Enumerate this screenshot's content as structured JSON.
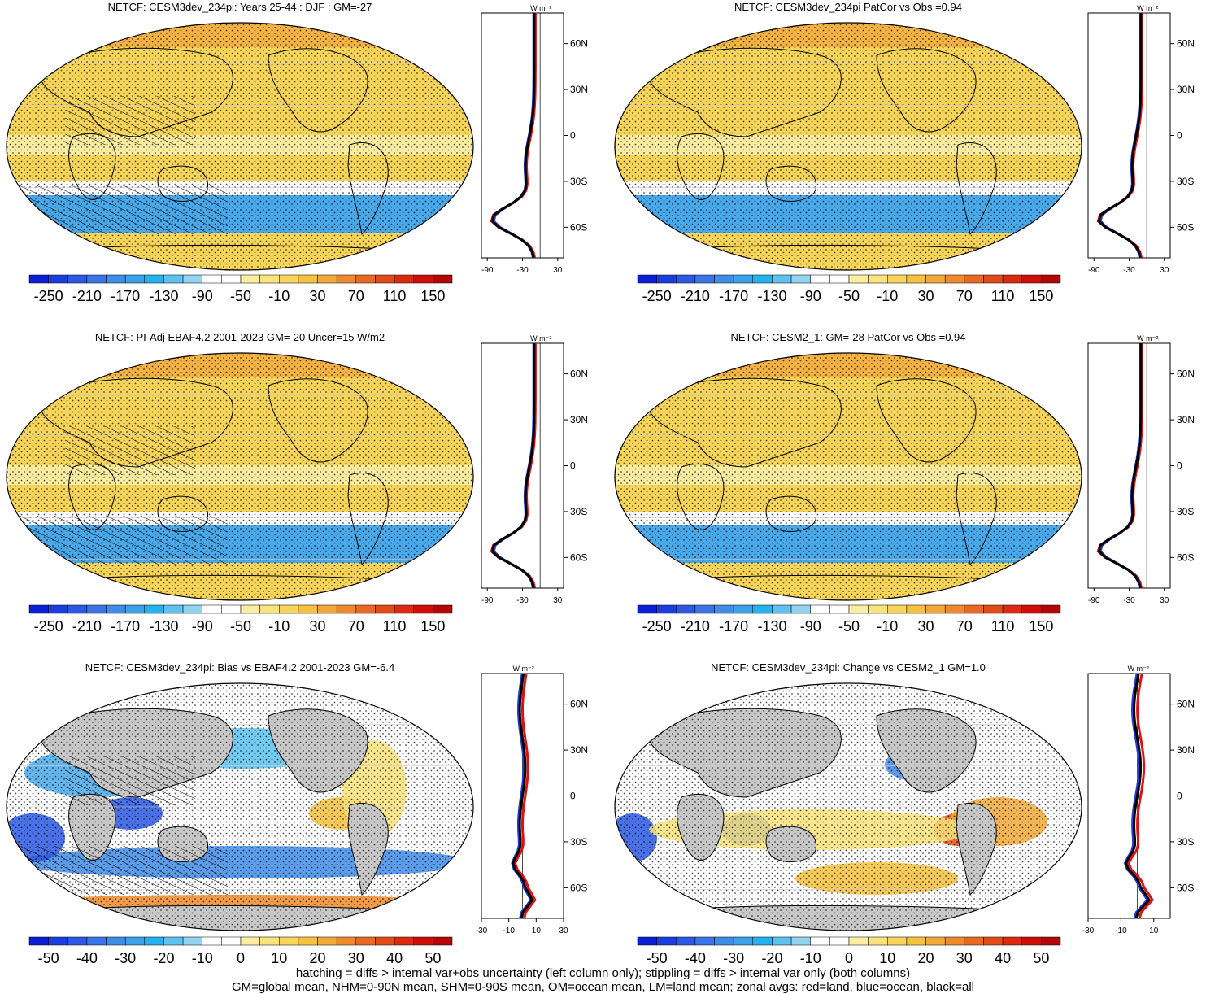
{
  "palette": {
    "ocean_blue": "#1f3fd8",
    "land_red": "#e01010",
    "all_black": "#000000",
    "map_yellow": "#f7d55a",
    "map_orange": "#f3a23a",
    "map_blue": "#4aa9ea",
    "missing_gray": "#c8c8c8",
    "stipple": "#000000"
  },
  "colorbar_main": {
    "colors": [
      "#0b1fd6",
      "#1b3de0",
      "#2b58e4",
      "#3b74e7",
      "#3f8ce9",
      "#3aa2ea",
      "#24b3ee",
      "#5cc2ef",
      "#92d3f0",
      "#ffffff",
      "#ffffff",
      "#fbeea0",
      "#f9e37c",
      "#f7d55a",
      "#f5c23f",
      "#f3a93a",
      "#ee8a2c",
      "#e86a20",
      "#e34b16",
      "#dd2a0e",
      "#d10d0a",
      "#b30606"
    ],
    "labels": [
      "-250",
      "-210",
      "-170",
      "-130",
      "-90",
      "-50",
      "-10",
      "30",
      "70",
      "110",
      "150"
    ]
  },
  "colorbar_diff": {
    "colors": [
      "#0b1fd6",
      "#1b3de0",
      "#2b58e4",
      "#3b74e7",
      "#3f8ce9",
      "#3aa2ea",
      "#24b3ee",
      "#5cc2ef",
      "#92d3f0",
      "#ffffff",
      "#ffffff",
      "#fbeea0",
      "#f9e37c",
      "#f7d55a",
      "#f5c23f",
      "#f3a93a",
      "#ee8a2c",
      "#e86a20",
      "#e34b16",
      "#dd2a0e",
      "#d10d0a",
      "#b30606"
    ],
    "labels": [
      "-50",
      "-40",
      "-30",
      "-20",
      "-10",
      "0",
      "10",
      "20",
      "30",
      "40",
      "50"
    ]
  },
  "lat_labels": [
    "60N",
    "30N",
    "0",
    "30S",
    "60S"
  ],
  "units_label": "W m⁻²",
  "chart_data": [
    {
      "type": "heatmap",
      "title": "NETCF: CESM3dev_234pi: Years 25-44 : DJF : GM=-27",
      "zonal_xticks": [
        "-90",
        "-30",
        "30"
      ],
      "zonal_xlim": [
        -100,
        40
      ],
      "hatching": true
    },
    {
      "type": "heatmap",
      "title": "NETCF: CESM3dev_234pi PatCor vs Obs =0.94",
      "zonal_xticks": [
        "-90",
        "-30",
        "30"
      ],
      "zonal_xlim": [
        -100,
        40
      ],
      "hatching": false
    },
    {
      "type": "heatmap",
      "title": "NETCF: PI-Adj EBAF4.2 2001-2023 GM=-20 Uncer=15 W/m2",
      "zonal_xticks": [
        "-90",
        "-30",
        "30"
      ],
      "zonal_xlim": [
        -100,
        40
      ],
      "hatching": true
    },
    {
      "type": "heatmap",
      "title": "NETCF: CESM2_1: GM=-28 PatCor vs Obs =0.94",
      "zonal_xticks": [
        "-90",
        "-30",
        "30"
      ],
      "zonal_xlim": [
        -100,
        40
      ],
      "hatching": false
    },
    {
      "type": "heatmap",
      "title": "NETCF: CESM3dev_234pi: Bias vs EBAF4.2 2001-2023 GM=-6.4",
      "zonal_xticks": [
        "-30",
        "-10",
        "10",
        "30"
      ],
      "zonal_xlim": [
        -30,
        30
      ],
      "hatching": true
    },
    {
      "type": "heatmap",
      "title": "NETCF: CESM3dev_234pi: Change vs CESM2_1 GM=1.0",
      "zonal_xticks": [
        "-30",
        "-10",
        "10"
      ],
      "zonal_xlim": [
        -30,
        20
      ],
      "hatching": false
    }
  ],
  "footer": {
    "line1": "hatching = diffs > internal var+obs uncertainty (left column only); stippling = diffs > internal var only (both columns)",
    "line2": "GM=global mean, NHM=0-90N mean, SHM=0-90S mean, OM=ocean mean, LM=land mean; zonal avgs: red=land, blue=ocean, black=all"
  }
}
